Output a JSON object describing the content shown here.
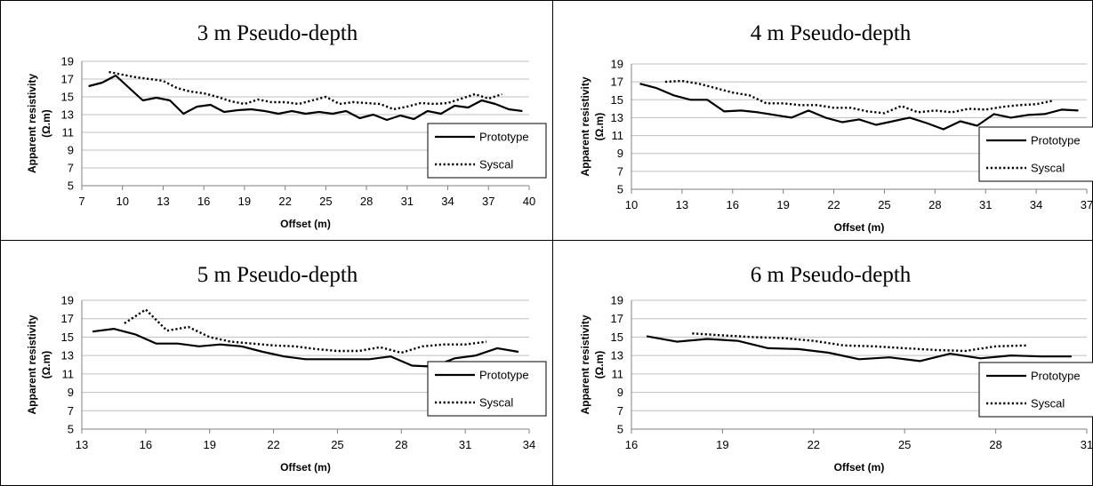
{
  "chart_data": [
    {
      "type": "line",
      "title": "3 m Pseudo-depth",
      "xlabel": "Offset (m)",
      "ylabel": "Apparent resistivity",
      "ylabel_unit": "(Ω.m)",
      "xlim": [
        7,
        40
      ],
      "xticks": [
        7,
        10,
        13,
        16,
        19,
        22,
        25,
        28,
        31,
        34,
        37,
        40
      ],
      "ylim": [
        5,
        19
      ],
      "yticks": [
        5,
        7,
        9,
        11,
        13,
        15,
        17,
        19
      ],
      "grid": true,
      "legend": "right",
      "series": [
        {
          "name": "Prototype",
          "style": "solid",
          "x": [
            7.5,
            8.5,
            9.5,
            10.5,
            11.5,
            12.5,
            13.5,
            14.5,
            15.5,
            16.5,
            17.5,
            18.5,
            19.5,
            20.5,
            21.5,
            22.5,
            23.5,
            24.5,
            25.5,
            26.5,
            27.5,
            28.5,
            29.5,
            30.5,
            31.5,
            32.5,
            33.5,
            34.5,
            35.5,
            36.5,
            37.5,
            38.5,
            39.5
          ],
          "y": [
            16.2,
            16.6,
            17.4,
            16.0,
            14.6,
            14.9,
            14.6,
            13.1,
            13.9,
            14.1,
            13.3,
            13.5,
            13.6,
            13.4,
            13.1,
            13.4,
            13.1,
            13.3,
            13.1,
            13.4,
            12.6,
            13.0,
            12.4,
            12.9,
            12.5,
            13.4,
            13.1,
            14.0,
            13.8,
            14.6,
            14.2,
            13.6,
            13.4
          ]
        },
        {
          "name": "Syscal",
          "style": "dotted",
          "x": [
            9,
            10,
            11,
            12,
            13,
            14,
            15,
            16,
            17,
            18,
            19,
            20,
            21,
            22,
            23,
            24,
            25,
            26,
            27,
            28,
            29,
            30,
            31,
            32,
            33,
            34,
            35,
            36,
            37,
            38
          ],
          "y": [
            17.8,
            17.5,
            17.2,
            17.0,
            16.8,
            16.0,
            15.6,
            15.4,
            15.0,
            14.5,
            14.2,
            14.7,
            14.4,
            14.4,
            14.2,
            14.6,
            15.0,
            14.2,
            14.4,
            14.3,
            14.2,
            13.6,
            13.9,
            14.3,
            14.2,
            14.3,
            14.8,
            15.3,
            14.8,
            15.3
          ]
        }
      ]
    },
    {
      "type": "line",
      "title": "4 m Pseudo-depth",
      "xlabel": "Offset (m)",
      "ylabel": "Apparent resistivity",
      "ylabel_unit": "(Ω.m)",
      "xlim": [
        10,
        37
      ],
      "xticks": [
        10,
        13,
        16,
        19,
        22,
        25,
        28,
        31,
        34,
        37
      ],
      "ylim": [
        5,
        19
      ],
      "yticks": [
        5,
        7,
        9,
        11,
        13,
        15,
        17,
        19
      ],
      "grid": true,
      "legend": "right",
      "series": [
        {
          "name": "Prototype",
          "style": "solid",
          "x": [
            10.5,
            11.5,
            12.5,
            13.5,
            14.5,
            15.5,
            16.5,
            17.5,
            18.5,
            19.5,
            20.5,
            21.5,
            22.5,
            23.5,
            24.5,
            25.5,
            26.5,
            27.5,
            28.5,
            29.5,
            30.5,
            31.5,
            32.5,
            33.5,
            34.5,
            35.5,
            36.5
          ],
          "y": [
            16.8,
            16.3,
            15.5,
            15.0,
            15.0,
            13.7,
            13.8,
            13.6,
            13.3,
            13.0,
            13.8,
            13.0,
            12.5,
            12.8,
            12.2,
            12.6,
            13.0,
            12.4,
            11.7,
            12.6,
            12.1,
            13.4,
            13.0,
            13.3,
            13.4,
            13.9,
            13.8
          ]
        },
        {
          "name": "Syscal",
          "style": "dotted",
          "x": [
            12,
            13,
            14,
            15,
            16,
            17,
            18,
            19,
            20,
            21,
            22,
            23,
            24,
            25,
            26,
            27,
            28,
            29,
            30,
            31,
            32,
            33,
            34,
            35
          ],
          "y": [
            17.0,
            17.1,
            16.8,
            16.3,
            15.8,
            15.5,
            14.6,
            14.6,
            14.4,
            14.4,
            14.1,
            14.1,
            13.7,
            13.5,
            14.3,
            13.6,
            13.8,
            13.6,
            14.0,
            13.9,
            14.2,
            14.4,
            14.5,
            14.9
          ]
        }
      ]
    },
    {
      "type": "line",
      "title": "5 m Pseudo-depth",
      "xlabel": "Offset (m)",
      "ylabel": "Apparent resistivity",
      "ylabel_unit": "(Ω.m)",
      "xlim": [
        13,
        34
      ],
      "xticks": [
        13,
        16,
        19,
        22,
        25,
        28,
        31,
        34
      ],
      "ylim": [
        5,
        19
      ],
      "yticks": [
        5,
        7,
        9,
        11,
        13,
        15,
        17,
        19
      ],
      "grid": true,
      "legend": "right",
      "series": [
        {
          "name": "Prototype",
          "style": "solid",
          "x": [
            13.5,
            14.5,
            15.5,
            16.5,
            17.5,
            18.5,
            19.5,
            20.5,
            21.5,
            22.5,
            23.5,
            24.5,
            25.5,
            26.5,
            27.5,
            28.5,
            29.5,
            30.5,
            31.5,
            32.5,
            33.5
          ],
          "y": [
            15.6,
            15.9,
            15.3,
            14.3,
            14.3,
            14.0,
            14.2,
            14.0,
            13.4,
            12.9,
            12.6,
            12.6,
            12.6,
            12.6,
            12.9,
            11.9,
            11.8,
            12.7,
            13.0,
            13.8,
            13.4
          ]
        },
        {
          "name": "Syscal",
          "style": "dotted",
          "x": [
            15,
            16,
            17,
            18,
            19,
            20,
            21,
            22,
            23,
            24,
            25,
            26,
            27,
            28,
            29,
            30,
            31,
            32
          ],
          "y": [
            16.5,
            18.0,
            15.7,
            16.1,
            15.0,
            14.5,
            14.3,
            14.1,
            14.0,
            13.7,
            13.5,
            13.5,
            13.9,
            13.3,
            14.0,
            14.2,
            14.2,
            14.5
          ]
        }
      ]
    },
    {
      "type": "line",
      "title": "6 m Pseudo-depth",
      "xlabel": "Offset (m)",
      "ylabel": "Apparent resistivity",
      "ylabel_unit": "(Ω.m)",
      "xlim": [
        16,
        31
      ],
      "xticks": [
        16,
        19,
        22,
        25,
        28,
        31
      ],
      "ylim": [
        5,
        19
      ],
      "yticks": [
        5,
        7,
        9,
        11,
        13,
        15,
        17,
        19
      ],
      "grid": true,
      "legend": "right",
      "series": [
        {
          "name": "Prototype",
          "style": "solid",
          "x": [
            16.5,
            17.5,
            18.5,
            19.5,
            20.5,
            21.5,
            22.5,
            23.5,
            24.5,
            25.5,
            26.5,
            27.5,
            28.5,
            29.5,
            30.5
          ],
          "y": [
            15.1,
            14.5,
            14.8,
            14.6,
            13.8,
            13.7,
            13.3,
            12.6,
            12.8,
            12.4,
            13.2,
            12.7,
            13.0,
            12.9,
            12.9
          ]
        },
        {
          "name": "Syscal",
          "style": "dotted",
          "x": [
            18,
            19,
            20,
            21,
            22,
            23,
            24,
            25,
            26,
            27,
            28,
            29
          ],
          "y": [
            15.4,
            15.2,
            15.0,
            14.9,
            14.6,
            14.1,
            14.0,
            13.8,
            13.6,
            13.5,
            14.0,
            14.1
          ]
        }
      ]
    }
  ]
}
